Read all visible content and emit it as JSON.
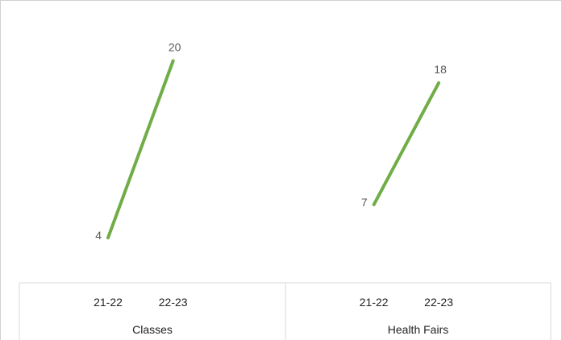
{
  "chart_data": {
    "type": "line",
    "groups": [
      {
        "name": "Classes",
        "categories": [
          "21-22",
          "22-23"
        ],
        "values": [
          4,
          20
        ]
      },
      {
        "name": "Health Fairs",
        "categories": [
          "21-22",
          "22-23"
        ],
        "values": [
          7,
          18
        ]
      }
    ],
    "ylim": [
      0,
      22
    ],
    "line_color": "#70ad47",
    "grid": false,
    "legend": "none",
    "title": "",
    "xlabel": "",
    "ylabel": ""
  }
}
